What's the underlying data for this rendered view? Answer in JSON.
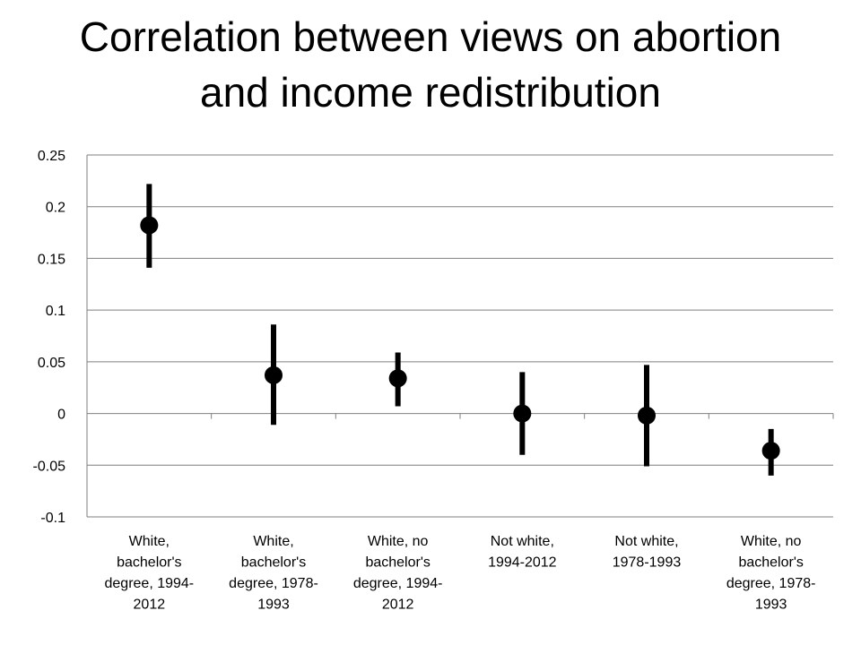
{
  "title_lines": [
    "Correlation between views on abortion",
    "and income redistribution"
  ],
  "chart_data": {
    "type": "scatter",
    "title": "Correlation between views on abortion and income redistribution",
    "xlabel": "",
    "ylabel": "",
    "ylim": [
      -0.1,
      0.25
    ],
    "yticks": [
      "-0.1",
      "-0.05",
      "0",
      "0.05",
      "0.1",
      "0.15",
      "0.2",
      "0.25"
    ],
    "grid": true,
    "categories": [
      [
        "White,",
        "bachelor's",
        "degree, 1994-",
        "2012"
      ],
      [
        "White,",
        "bachelor's",
        "degree, 1978-",
        "1993"
      ],
      [
        "White, no",
        "bachelor's",
        "degree, 1994-",
        "2012"
      ],
      [
        "Not white,",
        "1994-2012"
      ],
      [
        "Not white,",
        "1978-1993"
      ],
      [
        "White, no",
        "bachelor's",
        "degree, 1978-",
        "1993"
      ]
    ],
    "values": [
      0.182,
      0.037,
      0.034,
      0.0,
      -0.002,
      -0.036
    ],
    "error_low": [
      0.141,
      -0.011,
      0.007,
      -0.04,
      -0.051,
      -0.06
    ],
    "error_high": [
      0.222,
      0.086,
      0.059,
      0.04,
      0.047,
      -0.015
    ],
    "colors": {
      "marker": "#000000",
      "grid": "#7f7f7f",
      "axis": "#7f7f7f"
    }
  }
}
